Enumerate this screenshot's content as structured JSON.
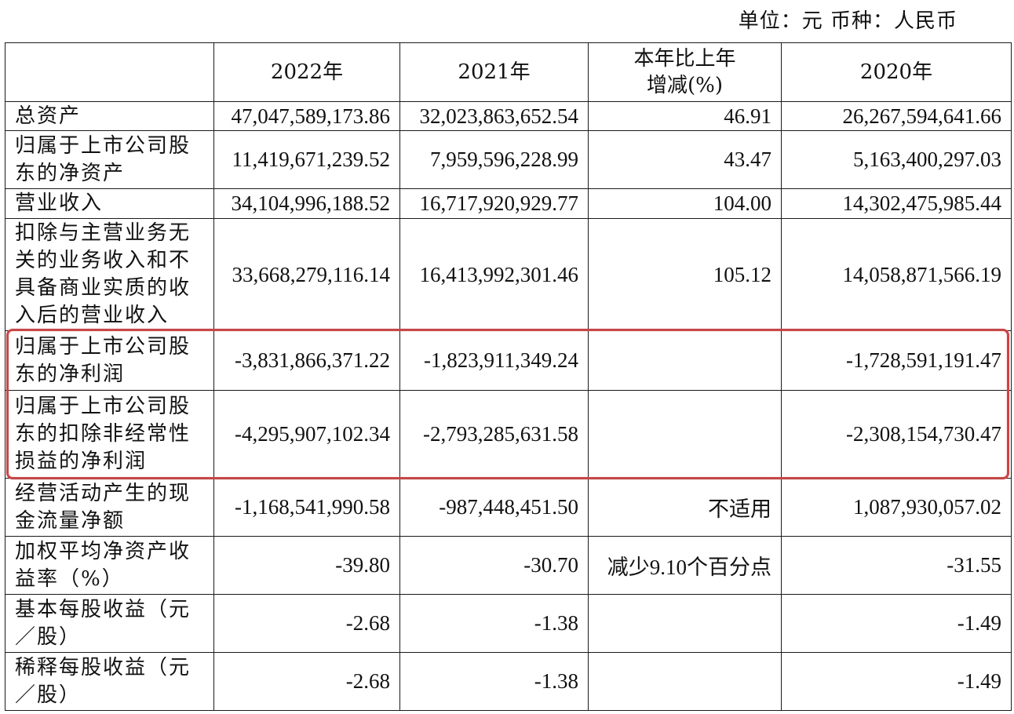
{
  "unit_line": "单位：元    币种：人民币",
  "columns": {
    "label": "",
    "y2022": "2022年",
    "y2021": "2021年",
    "change": "本年比上年\n增减(%)",
    "y2020": "2020年"
  },
  "rows": [
    {
      "label": "总资产",
      "y2022": "47,047,589,173.86",
      "y2021": "32,023,863,652.54",
      "change": "46.91",
      "y2020": "26,267,594,641.66"
    },
    {
      "label": "归属于上市公司股东的净资产",
      "y2022": "11,419,671,239.52",
      "y2021": "7,959,596,228.99",
      "change": "43.47",
      "y2020": "5,163,400,297.03"
    },
    {
      "label": "营业收入",
      "y2022": "34,104,996,188.52",
      "y2021": "16,717,920,929.77",
      "change": "104.00",
      "y2020": "14,302,475,985.44"
    },
    {
      "label": "扣除与主营业务无关的业务收入和不具备商业实质的收入后的营业收入",
      "y2022": "33,668,279,116.14",
      "y2021": "16,413,992,301.46",
      "change": "105.12",
      "y2020": "14,058,871,566.19"
    },
    {
      "label": "归属于上市公司股东的净利润",
      "y2022": "-3,831,866,371.22",
      "y2021": "-1,823,911,349.24",
      "change": "",
      "y2020": "-1,728,591,191.47"
    },
    {
      "label": "归属于上市公司股东的扣除非经常性损益的净利润",
      "y2022": "-4,295,907,102.34",
      "y2021": "-2,793,285,631.58",
      "change": "",
      "y2020": "-2,308,154,730.47"
    },
    {
      "label": "经营活动产生的现金流量净额",
      "y2022": "-1,168,541,990.58",
      "y2021": "-987,448,451.50",
      "change": "不适用",
      "y2020": "1,087,930,057.02"
    },
    {
      "label": "加权平均净资产收益率（%）",
      "y2022": "-39.80",
      "y2021": "-30.70",
      "change": "减少9.10个百分点",
      "y2020": "-31.55"
    },
    {
      "label": "基本每股收益（元／股）",
      "y2022": "-2.68",
      "y2021": "-1.38",
      "change": "",
      "y2020": "-1.49"
    },
    {
      "label": "稀释每股收益（元／股）",
      "y2022": "-2.68",
      "y2021": "-1.38",
      "change": "",
      "y2020": "-1.49"
    }
  ],
  "highlight_color": "#e03c3c"
}
